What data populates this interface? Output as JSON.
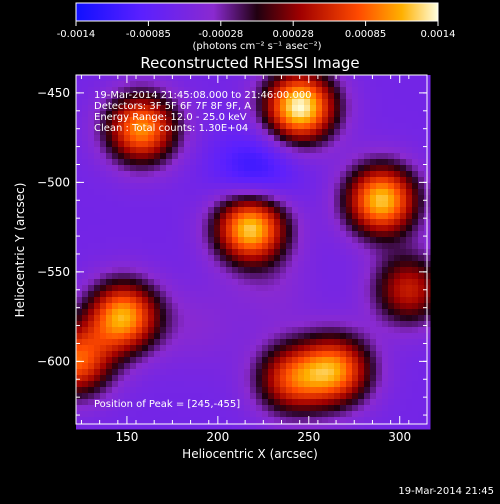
{
  "chart_data": {
    "type": "heatmap",
    "title": "Reconstructed RHESSI Image",
    "xlabel": "Heliocentric X (arcsec)",
    "ylabel": "Heliocentric Y (arcsec)",
    "xlim": [
      122,
      315
    ],
    "ylim": [
      -635,
      -440
    ],
    "x_ticks": [
      150,
      200,
      250,
      300
    ],
    "y_ticks": [
      -450,
      -500,
      -550,
      -600
    ],
    "colorbar": {
      "min": -0.0014,
      "max": 0.0014,
      "ticks": [
        "-0.0014",
        "-0.00085",
        "-0.00028",
        "0.00028",
        "0.00085",
        "0.0014"
      ],
      "units_label": "(photons cm⁻² s⁻¹ asec⁻²)"
    },
    "info_lines": [
      "19-Mar-2014 21:45:08.000 to 21:46:00.000",
      "Detectors: 3F 5F 6F 7F 8F 9F, A",
      "Energy Range: 12.0 - 25.0 keV",
      "Clean : Total counts: 1.30E+04"
    ],
    "peak_text": "Position of Peak = [245,-455]",
    "footer_date": "19-Mar-2014 21:45",
    "sources": [
      {
        "x": 245,
        "y": -458,
        "peak": 0.0014
      },
      {
        "x": 158,
        "y": -470,
        "peak": 0.001
      },
      {
        "x": 218,
        "y": -525,
        "peak": 0.0013
      },
      {
        "x": 290,
        "y": -510,
        "peak": 0.0012
      },
      {
        "x": 148,
        "y": -575,
        "peak": 0.0011
      },
      {
        "x": 265,
        "y": -605,
        "peak": 0.0009
      },
      {
        "x": 240,
        "y": -610,
        "peak": 0.0006
      },
      {
        "x": 122,
        "y": -600,
        "peak": 0.0008
      },
      {
        "x": 305,
        "y": -560,
        "peak": 0.0005
      }
    ],
    "negative_regions": [
      {
        "x": 220,
        "y": -495,
        "value": -0.0012
      },
      {
        "x": 190,
        "y": -580,
        "value": -0.0004
      },
      {
        "x": 230,
        "y": -560,
        "value": -0.0004
      }
    ]
  }
}
